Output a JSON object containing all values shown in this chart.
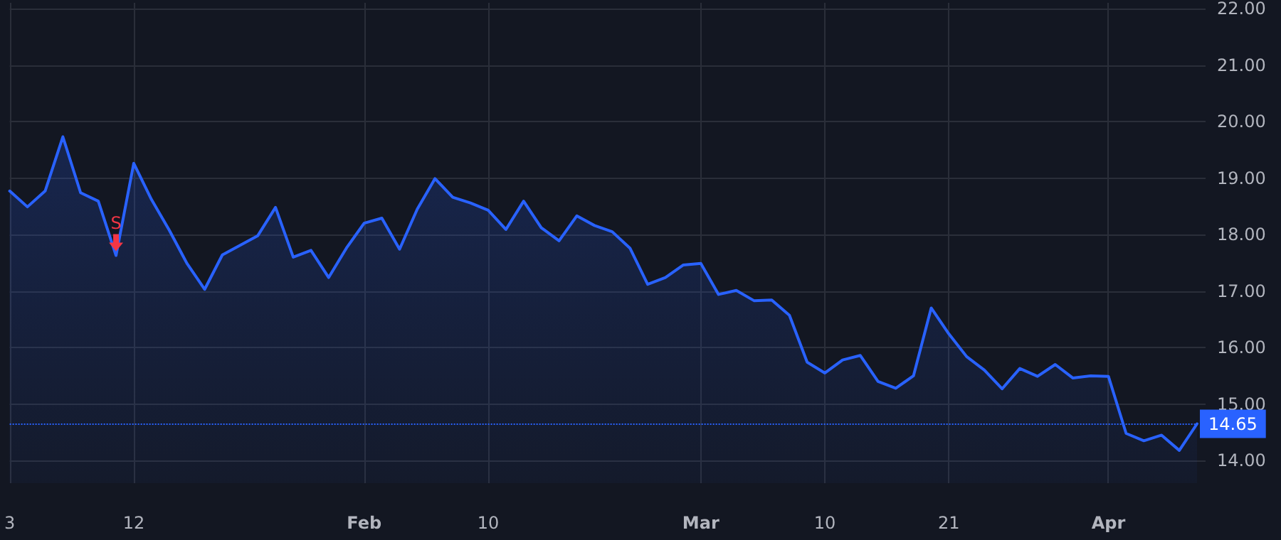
{
  "chart_data": {
    "type": "area",
    "categories": [
      "3",
      null,
      null,
      null,
      null,
      null,
      null,
      "12",
      null,
      null,
      null,
      null,
      null,
      null,
      null,
      null,
      null,
      null,
      null,
      null,
      "Feb",
      null,
      null,
      null,
      null,
      null,
      null,
      "10",
      null,
      null,
      null,
      null,
      null,
      null,
      null,
      null,
      null,
      null,
      null,
      "Mar",
      null,
      null,
      null,
      null,
      null,
      null,
      "10",
      null,
      null,
      null,
      null,
      null,
      null,
      "21",
      null,
      null,
      null,
      null,
      null,
      null,
      null,
      null,
      "Apr",
      null,
      null,
      null,
      null,
      null
    ],
    "series": [
      {
        "color": "#2962ff",
        "values": [
          18.77,
          18.49,
          18.77,
          19.73,
          18.74,
          18.59,
          17.63,
          19.26,
          18.62,
          18.08,
          17.49,
          17.03,
          17.64,
          17.81,
          17.98,
          18.48,
          17.6,
          17.72,
          17.24,
          17.76,
          18.2,
          18.29,
          17.74,
          18.45,
          18.99,
          18.66,
          18.56,
          18.43,
          18.09,
          18.59,
          18.12,
          17.89,
          18.33,
          18.16,
          18.05,
          17.76,
          17.12,
          17.24,
          17.46,
          17.49,
          16.94,
          17.01,
          16.83,
          16.84,
          16.57,
          15.74,
          15.55,
          15.78,
          15.86,
          15.4,
          15.28,
          15.5,
          16.7,
          16.24,
          15.84,
          15.6,
          15.27,
          15.63,
          15.49,
          15.7,
          15.46,
          15.5,
          15.49,
          14.48,
          14.35,
          14.45,
          14.18,
          14.65
        ]
      }
    ],
    "ylim": [
      13.6,
      22.1
    ],
    "yticks": [
      {
        "value": 14,
        "label": "14.00"
      },
      {
        "value": 15,
        "label": "15.00"
      },
      {
        "value": 16,
        "label": "16.00"
      },
      {
        "value": 17,
        "label": "17.00"
      },
      {
        "value": 18,
        "label": "18.00"
      },
      {
        "value": 19,
        "label": "19.00"
      },
      {
        "value": 20,
        "label": "20.00"
      },
      {
        "value": 21,
        "label": "21.00"
      },
      {
        "value": 22,
        "label": "22.00"
      }
    ],
    "ref_lines": [
      {
        "axis": "y",
        "value": 14.65,
        "label": "14.65",
        "color": "#2962ff",
        "line_style": "dotted"
      }
    ],
    "annotations": [
      {
        "text": "S",
        "y": 17.63
      }
    ],
    "grid": true,
    "marker": "none",
    "line_style": "solid"
  }
}
